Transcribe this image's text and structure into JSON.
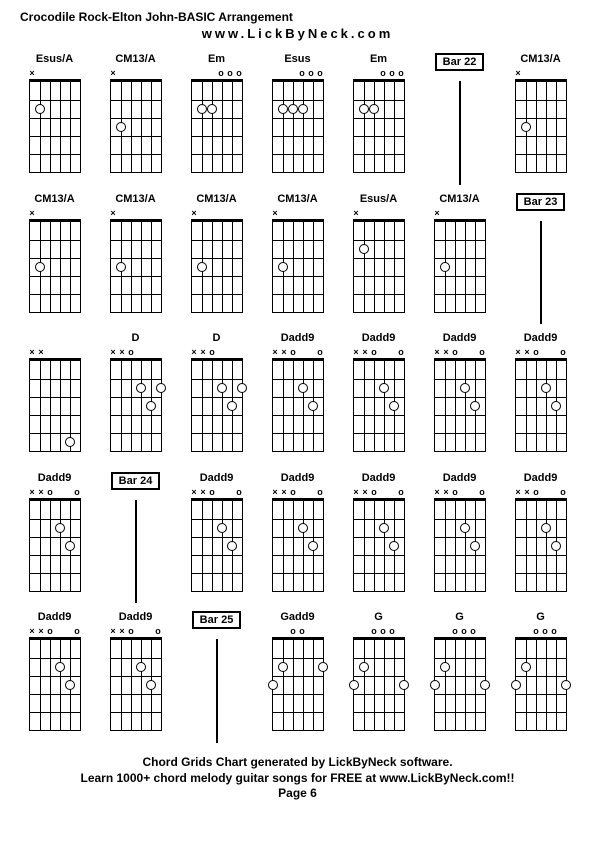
{
  "header": {
    "title": "Crocodile Rock-Elton John-BASIC Arrangement",
    "subtitle": "www.LickByNeck.com"
  },
  "footer": {
    "line1": "Chord Grids Chart generated by LickByNeck software.",
    "line2": "Learn 1000+ chord melody guitar songs for FREE at www.LickByNeck.com!!",
    "page": "Page 6"
  },
  "grid": {
    "rows": 5,
    "cols": 7,
    "fret_count": 5,
    "string_count": 6
  },
  "cells": [
    {
      "type": "chord",
      "name": "Esus/A",
      "markers": [
        "x",
        "",
        "",
        "",
        "",
        ""
      ],
      "dots": [
        {
          "s": 1,
          "f": 2
        }
      ]
    },
    {
      "type": "chord",
      "name": "CM13/A",
      "markers": [
        "x",
        "",
        "",
        "",
        "",
        ""
      ],
      "dots": [
        {
          "s": 1,
          "f": 3
        }
      ]
    },
    {
      "type": "chord",
      "name": "Em",
      "markers": [
        "",
        "",
        "",
        "o",
        "o",
        "o"
      ],
      "dots": [
        {
          "s": 1,
          "f": 2
        },
        {
          "s": 2,
          "f": 2
        }
      ]
    },
    {
      "type": "chord",
      "name": "Esus",
      "markers": [
        "",
        "",
        "",
        "o",
        "o",
        "o"
      ],
      "dots": [
        {
          "s": 1,
          "f": 2
        },
        {
          "s": 2,
          "f": 2
        },
        {
          "s": 3,
          "f": 2
        }
      ]
    },
    {
      "type": "chord",
      "name": "Em",
      "markers": [
        "",
        "",
        "",
        "o",
        "o",
        "o"
      ],
      "dots": [
        {
          "s": 1,
          "f": 2
        },
        {
          "s": 2,
          "f": 2
        }
      ]
    },
    {
      "type": "bar",
      "label": "Bar 22"
    },
    {
      "type": "chord",
      "name": "CM13/A",
      "markers": [
        "x",
        "",
        "",
        "",
        "",
        ""
      ],
      "dots": [
        {
          "s": 1,
          "f": 3
        }
      ]
    },
    {
      "type": "chord",
      "name": "CM13/A",
      "markers": [
        "x",
        "",
        "",
        "",
        "",
        ""
      ],
      "dots": [
        {
          "s": 1,
          "f": 3
        }
      ]
    },
    {
      "type": "chord",
      "name": "CM13/A",
      "markers": [
        "x",
        "",
        "",
        "",
        "",
        ""
      ],
      "dots": [
        {
          "s": 1,
          "f": 3
        }
      ]
    },
    {
      "type": "chord",
      "name": "CM13/A",
      "markers": [
        "x",
        "",
        "",
        "",
        "",
        ""
      ],
      "dots": [
        {
          "s": 1,
          "f": 3
        }
      ]
    },
    {
      "type": "chord",
      "name": "CM13/A",
      "markers": [
        "x",
        "",
        "",
        "",
        "",
        ""
      ],
      "dots": [
        {
          "s": 1,
          "f": 3
        }
      ]
    },
    {
      "type": "chord",
      "name": "Esus/A",
      "markers": [
        "x",
        "",
        "",
        "",
        "",
        ""
      ],
      "dots": [
        {
          "s": 1,
          "f": 2
        }
      ]
    },
    {
      "type": "chord",
      "name": "CM13/A",
      "markers": [
        "x",
        "",
        "",
        "",
        "",
        ""
      ],
      "dots": [
        {
          "s": 1,
          "f": 3
        }
      ]
    },
    {
      "type": "bar",
      "label": "Bar 23"
    },
    {
      "type": "chord",
      "name": "",
      "markers": [
        "x",
        "x",
        "",
        "",
        "",
        ""
      ],
      "dots": [
        {
          "s": 4,
          "f": 5
        }
      ]
    },
    {
      "type": "chord",
      "name": "D",
      "markers": [
        "x",
        "x",
        "o",
        "",
        "",
        ""
      ],
      "dots": [
        {
          "s": 3,
          "f": 2
        },
        {
          "s": 4,
          "f": 3
        },
        {
          "s": 5,
          "f": 2
        }
      ]
    },
    {
      "type": "chord",
      "name": "D",
      "markers": [
        "x",
        "x",
        "o",
        "",
        "",
        ""
      ],
      "dots": [
        {
          "s": 3,
          "f": 2
        },
        {
          "s": 4,
          "f": 3
        },
        {
          "s": 5,
          "f": 2
        }
      ]
    },
    {
      "type": "chord",
      "name": "Dadd9",
      "markers": [
        "x",
        "x",
        "o",
        "",
        "",
        "o"
      ],
      "dots": [
        {
          "s": 3,
          "f": 2
        },
        {
          "s": 4,
          "f": 3
        }
      ]
    },
    {
      "type": "chord",
      "name": "Dadd9",
      "markers": [
        "x",
        "x",
        "o",
        "",
        "",
        "o"
      ],
      "dots": [
        {
          "s": 3,
          "f": 2
        },
        {
          "s": 4,
          "f": 3
        }
      ]
    },
    {
      "type": "chord",
      "name": "Dadd9",
      "markers": [
        "x",
        "x",
        "o",
        "",
        "",
        "o"
      ],
      "dots": [
        {
          "s": 3,
          "f": 2
        },
        {
          "s": 4,
          "f": 3
        }
      ]
    },
    {
      "type": "chord",
      "name": "Dadd9",
      "markers": [
        "x",
        "x",
        "o",
        "",
        "",
        "o"
      ],
      "dots": [
        {
          "s": 3,
          "f": 2
        },
        {
          "s": 4,
          "f": 3
        }
      ]
    },
    {
      "type": "chord",
      "name": "Dadd9",
      "markers": [
        "x",
        "x",
        "o",
        "",
        "",
        "o"
      ],
      "dots": [
        {
          "s": 3,
          "f": 2
        },
        {
          "s": 4,
          "f": 3
        }
      ]
    },
    {
      "type": "bar",
      "label": "Bar 24"
    },
    {
      "type": "chord",
      "name": "Dadd9",
      "markers": [
        "x",
        "x",
        "o",
        "",
        "",
        "o"
      ],
      "dots": [
        {
          "s": 3,
          "f": 2
        },
        {
          "s": 4,
          "f": 3
        }
      ]
    },
    {
      "type": "chord",
      "name": "Dadd9",
      "markers": [
        "x",
        "x",
        "o",
        "",
        "",
        "o"
      ],
      "dots": [
        {
          "s": 3,
          "f": 2
        },
        {
          "s": 4,
          "f": 3
        }
      ]
    },
    {
      "type": "chord",
      "name": "Dadd9",
      "markers": [
        "x",
        "x",
        "o",
        "",
        "",
        "o"
      ],
      "dots": [
        {
          "s": 3,
          "f": 2
        },
        {
          "s": 4,
          "f": 3
        }
      ]
    },
    {
      "type": "chord",
      "name": "Dadd9",
      "markers": [
        "x",
        "x",
        "o",
        "",
        "",
        "o"
      ],
      "dots": [
        {
          "s": 3,
          "f": 2
        },
        {
          "s": 4,
          "f": 3
        }
      ]
    },
    {
      "type": "chord",
      "name": "Dadd9",
      "markers": [
        "x",
        "x",
        "o",
        "",
        "",
        "o"
      ],
      "dots": [
        {
          "s": 3,
          "f": 2
        },
        {
          "s": 4,
          "f": 3
        }
      ]
    },
    {
      "type": "chord",
      "name": "Dadd9",
      "markers": [
        "x",
        "x",
        "o",
        "",
        "",
        "o"
      ],
      "dots": [
        {
          "s": 3,
          "f": 2
        },
        {
          "s": 4,
          "f": 3
        }
      ]
    },
    {
      "type": "chord",
      "name": "Dadd9",
      "markers": [
        "x",
        "x",
        "o",
        "",
        "",
        "o"
      ],
      "dots": [
        {
          "s": 3,
          "f": 2
        },
        {
          "s": 4,
          "f": 3
        }
      ]
    },
    {
      "type": "bar",
      "label": "Bar 25"
    },
    {
      "type": "chord",
      "name": "Gadd9",
      "markers": [
        "",
        "",
        "o",
        "o",
        "",
        ""
      ],
      "dots": [
        {
          "s": 0,
          "f": 3
        },
        {
          "s": 1,
          "f": 2
        },
        {
          "s": 5,
          "f": 2
        }
      ]
    },
    {
      "type": "chord",
      "name": "G",
      "markers": [
        "",
        "",
        "o",
        "o",
        "o",
        ""
      ],
      "dots": [
        {
          "s": 0,
          "f": 3
        },
        {
          "s": 1,
          "f": 2
        },
        {
          "s": 5,
          "f": 3
        }
      ]
    },
    {
      "type": "chord",
      "name": "G",
      "markers": [
        "",
        "",
        "o",
        "o",
        "o",
        ""
      ],
      "dots": [
        {
          "s": 0,
          "f": 3
        },
        {
          "s": 1,
          "f": 2
        },
        {
          "s": 5,
          "f": 3
        }
      ]
    },
    {
      "type": "chord",
      "name": "G",
      "markers": [
        "",
        "",
        "o",
        "o",
        "o",
        ""
      ],
      "dots": [
        {
          "s": 0,
          "f": 3
        },
        {
          "s": 1,
          "f": 2
        },
        {
          "s": 5,
          "f": 3
        }
      ]
    }
  ]
}
